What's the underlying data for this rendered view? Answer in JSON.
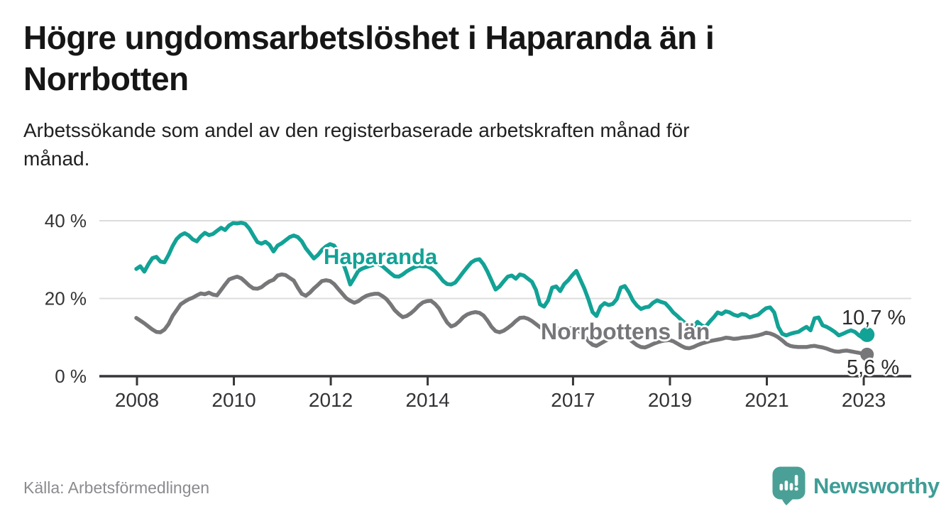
{
  "title": {
    "lines": [
      "Högre ungdomsarbetslöshet i Haparanda än i",
      "Norrbotten"
    ],
    "text": "Högre ungdomsarbetslöshet i Haparanda än i Norrbotten"
  },
  "subtitle": {
    "lines": [
      "Arbetssökande som andel av den registerbaserade arbetskraften månad för",
      "månad."
    ],
    "text": "Arbetssökande som andel av den registerbaserade arbetskraften månad för månad."
  },
  "chart_data": {
    "type": "line",
    "unit": "%",
    "frequency": "monthly",
    "x_start": "2008-01",
    "x_end": "2023-02",
    "grid": "horizontal",
    "x_ticks": [
      {
        "label": "2008",
        "year": 2008
      },
      {
        "label": "2010",
        "year": 2010
      },
      {
        "label": "2012",
        "year": 2012
      },
      {
        "label": "2014",
        "year": 2014
      },
      {
        "label": "2017",
        "year": 2017
      },
      {
        "label": "2019",
        "year": 2019
      },
      {
        "label": "2021",
        "year": 2021
      },
      {
        "label": "2023",
        "year": 2023
      }
    ],
    "y_ticks": [
      {
        "label": "40 %",
        "value": 40
      },
      {
        "label": "20 %",
        "value": 20
      },
      {
        "label": "0 %",
        "value": 0
      }
    ],
    "ylim": [
      0,
      42
    ],
    "series": [
      {
        "name": "Haparanda",
        "color": "#12a296",
        "end_label": "10,7 %",
        "end_value": 10.7,
        "values": [
          27.6,
          28.3,
          26.9,
          28.8,
          30.4,
          30.7,
          29.5,
          29.3,
          31.2,
          33.5,
          35.3,
          36.3,
          36.8,
          36.2,
          35.2,
          34.7,
          36.0,
          36.9,
          36.3,
          36.6,
          37.4,
          38.2,
          37.6,
          38.8,
          39.4,
          39.3,
          39.5,
          39.2,
          38.0,
          36.2,
          34.5,
          34.1,
          34.6,
          33.8,
          32.1,
          33.6,
          34.2,
          35.0,
          35.8,
          36.2,
          35.8,
          34.7,
          32.9,
          31.6,
          30.3,
          31.2,
          32.5,
          33.4,
          34.0,
          33.6,
          31.9,
          29.7,
          26.9,
          23.6,
          25.3,
          27.1,
          27.7,
          28.1,
          28.4,
          28.8,
          28.9,
          28.3,
          27.4,
          26.5,
          25.7,
          25.6,
          26.2,
          27.0,
          27.6,
          28.1,
          28.4,
          28.3,
          28.3,
          27.8,
          27.0,
          25.8,
          24.5,
          23.7,
          23.6,
          24.1,
          25.4,
          26.8,
          28.1,
          29.3,
          29.9,
          30.1,
          28.8,
          26.9,
          24.6,
          22.3,
          23.1,
          24.4,
          25.6,
          25.9,
          25.1,
          26.2,
          25.9,
          25.1,
          24.3,
          22.2,
          18.5,
          17.9,
          19.5,
          22.8,
          23.1,
          21.9,
          23.7,
          24.7,
          26.0,
          27.1,
          24.8,
          22.5,
          19.7,
          16.5,
          15.5,
          17.9,
          18.8,
          18.3,
          18.6,
          19.8,
          22.8,
          23.2,
          21.6,
          19.5,
          18.2,
          17.3,
          17.7,
          17.9,
          18.9,
          19.5,
          19.1,
          18.8,
          17.7,
          16.4,
          15.5,
          14.5,
          13.6,
          13.1,
          12.7,
          14.0,
          13.1,
          12.7,
          14.0,
          15.1,
          16.4,
          16.0,
          16.7,
          16.4,
          15.8,
          15.5,
          16.0,
          15.8,
          15.1,
          15.5,
          15.8,
          16.7,
          17.5,
          17.7,
          16.4,
          12.7,
          10.9,
          10.5,
          10.9,
          11.2,
          11.4,
          12.1,
          12.7,
          11.8,
          14.9,
          15.1,
          13.1,
          12.7,
          12.1,
          11.4,
          10.5,
          10.9,
          11.4,
          11.8,
          11.4,
          10.5,
          9.8,
          10.7
        ]
      },
      {
        "name": "Norrbottens län",
        "color": "#77777a",
        "end_label": "5,6 %",
        "end_value": 5.6,
        "values": [
          15.0,
          14.3,
          13.6,
          12.8,
          12.0,
          11.4,
          11.3,
          12.0,
          13.4,
          15.5,
          17.0,
          18.5,
          19.2,
          19.8,
          20.2,
          20.8,
          21.3,
          21.1,
          21.5,
          21.0,
          20.8,
          22.2,
          23.6,
          24.9,
          25.3,
          25.6,
          25.2,
          24.3,
          23.3,
          22.6,
          22.5,
          22.9,
          23.7,
          24.4,
          24.8,
          25.9,
          26.2,
          26.0,
          25.3,
          24.6,
          22.8,
          21.2,
          20.7,
          21.5,
          22.6,
          23.5,
          24.5,
          24.7,
          24.5,
          23.7,
          22.5,
          21.3,
          20.1,
          19.4,
          18.9,
          19.3,
          20.1,
          20.7,
          21.0,
          21.2,
          21.2,
          20.6,
          19.8,
          18.5,
          17.0,
          16.0,
          15.2,
          15.5,
          16.2,
          17.1,
          18.2,
          19.0,
          19.3,
          19.4,
          18.6,
          17.4,
          15.5,
          13.8,
          12.8,
          13.2,
          14.1,
          15.2,
          15.9,
          16.3,
          16.5,
          16.3,
          15.6,
          14.3,
          12.7,
          11.6,
          11.3,
          11.7,
          12.4,
          13.2,
          14.2,
          15.0,
          15.1,
          14.8,
          14.2,
          13.4,
          12.6,
          12.0,
          11.8,
          12.1,
          12.3,
          12.1,
          11.9,
          12.2,
          12.4,
          12.1,
          11.3,
          10.3,
          9.0,
          8.1,
          7.8,
          8.4,
          9.0,
          9.5,
          9.9,
          10.2,
          10.5,
          10.2,
          9.6,
          8.8,
          8.0,
          7.5,
          7.4,
          7.8,
          8.3,
          8.7,
          9.0,
          9.2,
          9.3,
          9.0,
          8.4,
          7.8,
          7.3,
          7.2,
          7.5,
          8.0,
          8.4,
          8.7,
          9.0,
          9.2,
          9.4,
          9.6,
          9.9,
          9.8,
          9.6,
          9.7,
          9.9,
          10.0,
          10.1,
          10.3,
          10.5,
          10.8,
          11.2,
          11.0,
          10.6,
          10.0,
          9.2,
          8.3,
          7.8,
          7.6,
          7.5,
          7.5,
          7.5,
          7.7,
          7.8,
          7.6,
          7.4,
          7.1,
          6.7,
          6.4,
          6.3,
          6.5,
          6.6,
          6.4,
          6.2,
          6.0,
          5.8,
          5.6
        ]
      }
    ]
  },
  "source": "Källa: Arbetsförmedlingen",
  "logo": {
    "text": "Newsworthy",
    "icon": "speech-bubble-bar-chart-exclamation",
    "icon_color": "#4aa096",
    "text_color": "#3f9d96"
  },
  "colors": {
    "haparanda_line": "#12a296",
    "norrbotten_line": "#77777a",
    "axis": "#37373a",
    "grid": "#dcdcdc",
    "tick_label": "#343437",
    "title_text": "#161616",
    "source_text": "#8b8b90"
  }
}
